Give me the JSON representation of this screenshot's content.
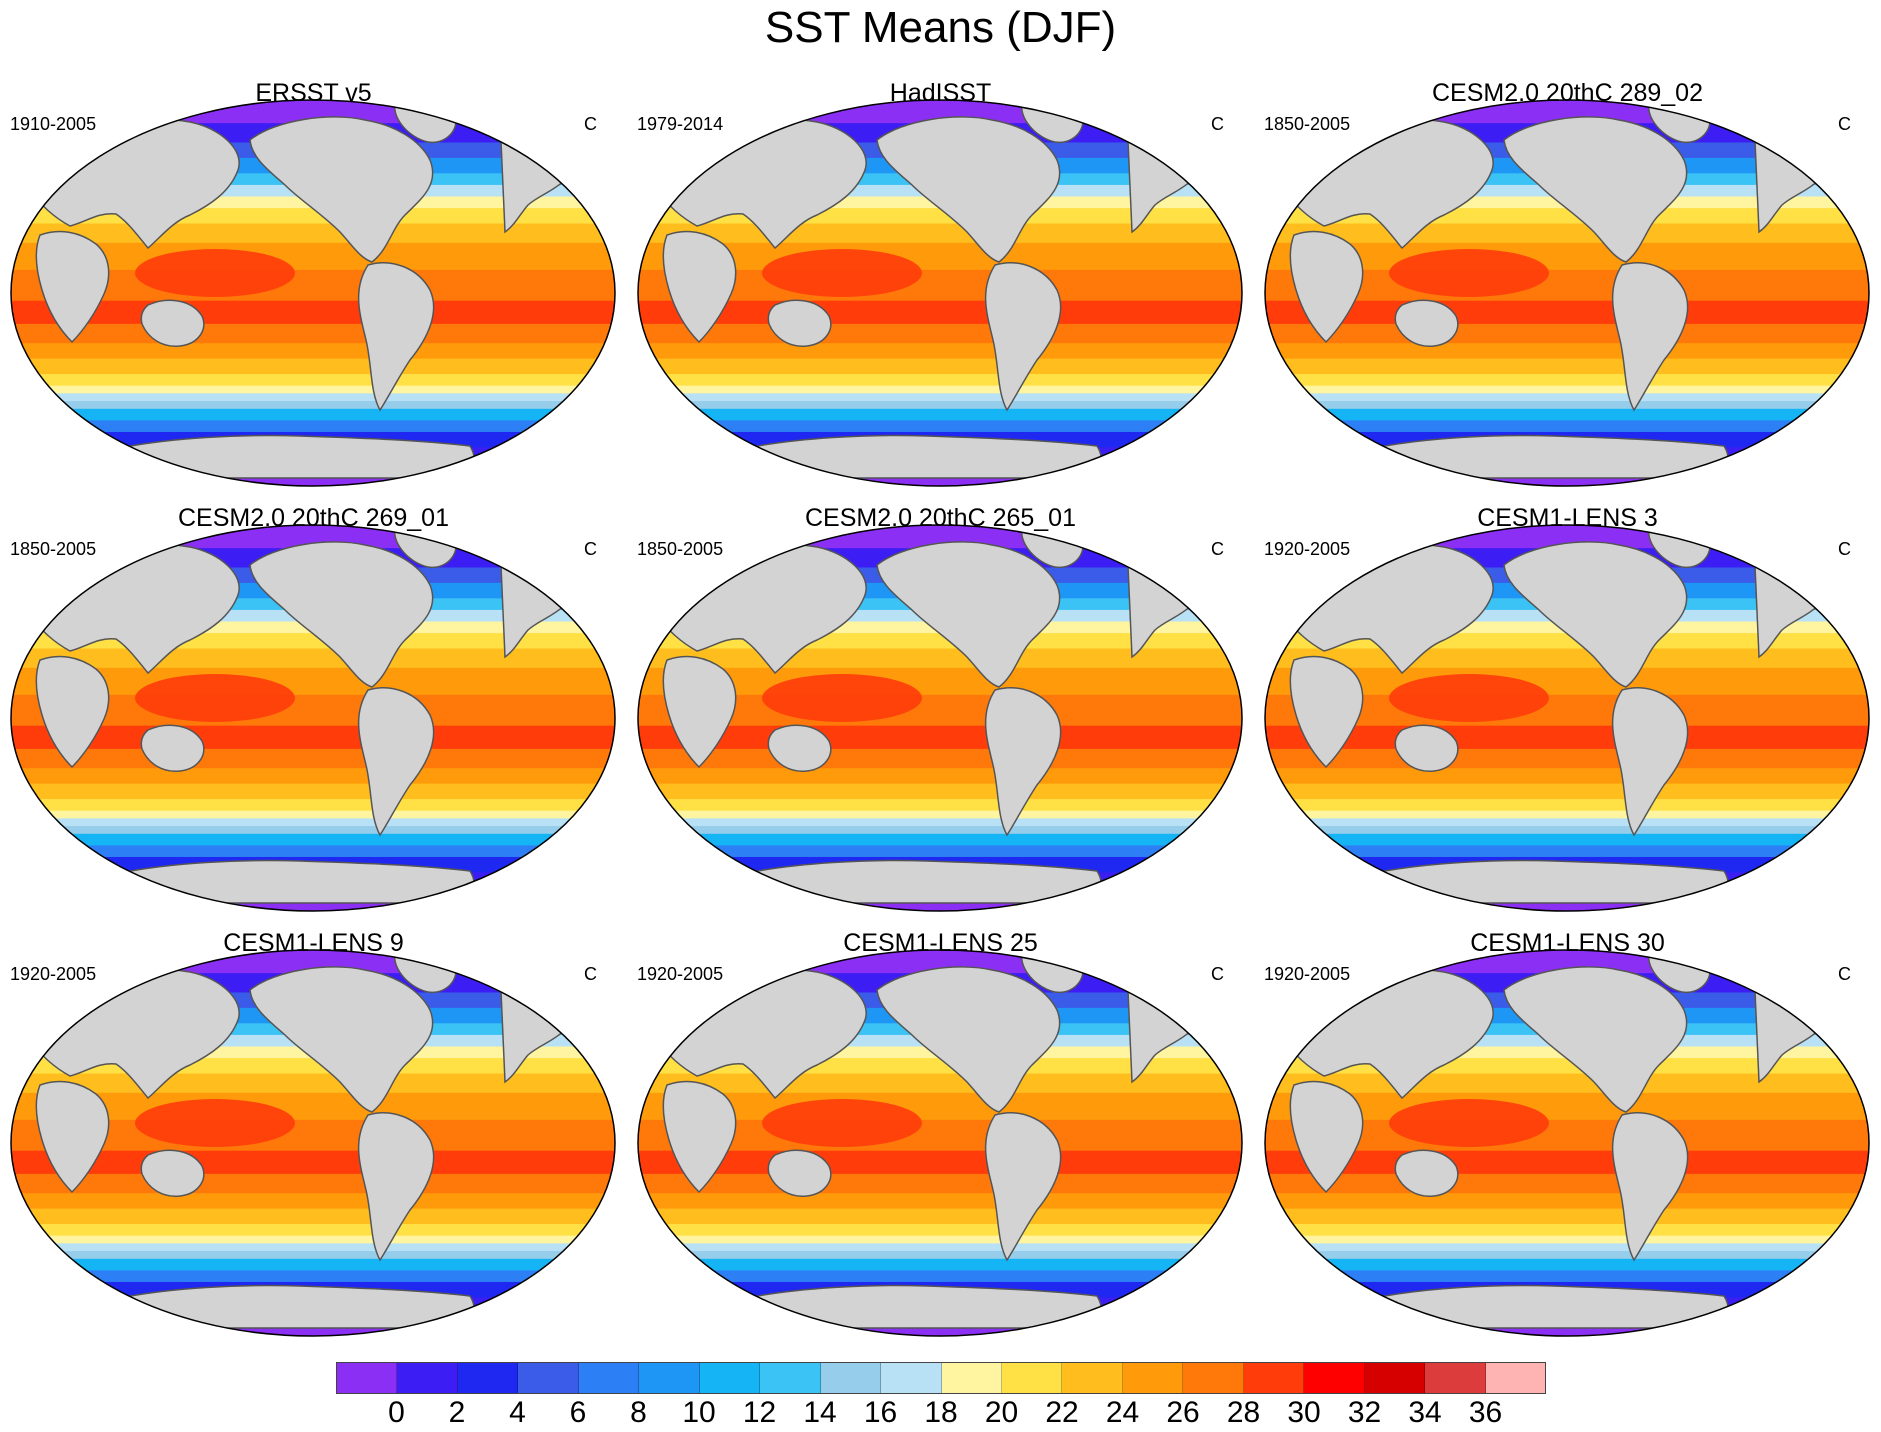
{
  "title": "SST Means (DJF)",
  "chart_data": {
    "type": "heatmap",
    "title": "SST Means (DJF)",
    "projection": "Robinson global map",
    "units": "C",
    "panels": [
      {
        "title": "ERSST v5",
        "period": "1910-2005",
        "units": "C"
      },
      {
        "title": "HadISST",
        "period": "1979-2014",
        "units": "C"
      },
      {
        "title": "CESM2.0 20thC 289_02",
        "period": "1850-2005",
        "units": "C"
      },
      {
        "title": "CESM2.0 20thC 269_01",
        "period": "1850-2005",
        "units": "C"
      },
      {
        "title": "CESM2.0 20thC 265_01",
        "period": "1850-2005",
        "units": "C"
      },
      {
        "title": "CESM1-LENS 3",
        "period": "1920-2005",
        "units": "C"
      },
      {
        "title": "CESM1-LENS 9",
        "period": "1920-2005",
        "units": "C"
      },
      {
        "title": "CESM1-LENS 25",
        "period": "1920-2005",
        "units": "C"
      },
      {
        "title": "CESM1-LENS 30",
        "period": "1920-2005",
        "units": "C"
      }
    ],
    "colorbar": {
      "levels": [
        0,
        2,
        4,
        6,
        8,
        10,
        12,
        14,
        16,
        18,
        20,
        22,
        24,
        26,
        28,
        30,
        32,
        34,
        36
      ],
      "labels": [
        "0",
        "2",
        "4",
        "6",
        "8",
        "10",
        "12",
        "14",
        "16",
        "18",
        "20",
        "22",
        "24",
        "26",
        "28",
        "30",
        "32",
        "34",
        "36"
      ],
      "colors": [
        "#8c2ff5",
        "#3c1ef5",
        "#1e28f0",
        "#3a5ce8",
        "#2d7ff5",
        "#1e96f5",
        "#14b4f5",
        "#3cc3f5",
        "#96cdeb",
        "#b9e1f5",
        "#fff5a0",
        "#ffe146",
        "#ffbe1e",
        "#ff9b0a",
        "#ff780a",
        "#ff3c0a",
        "#ff0000",
        "#d70000",
        "#dc3c3c",
        "#ffb4b4"
      ]
    }
  }
}
